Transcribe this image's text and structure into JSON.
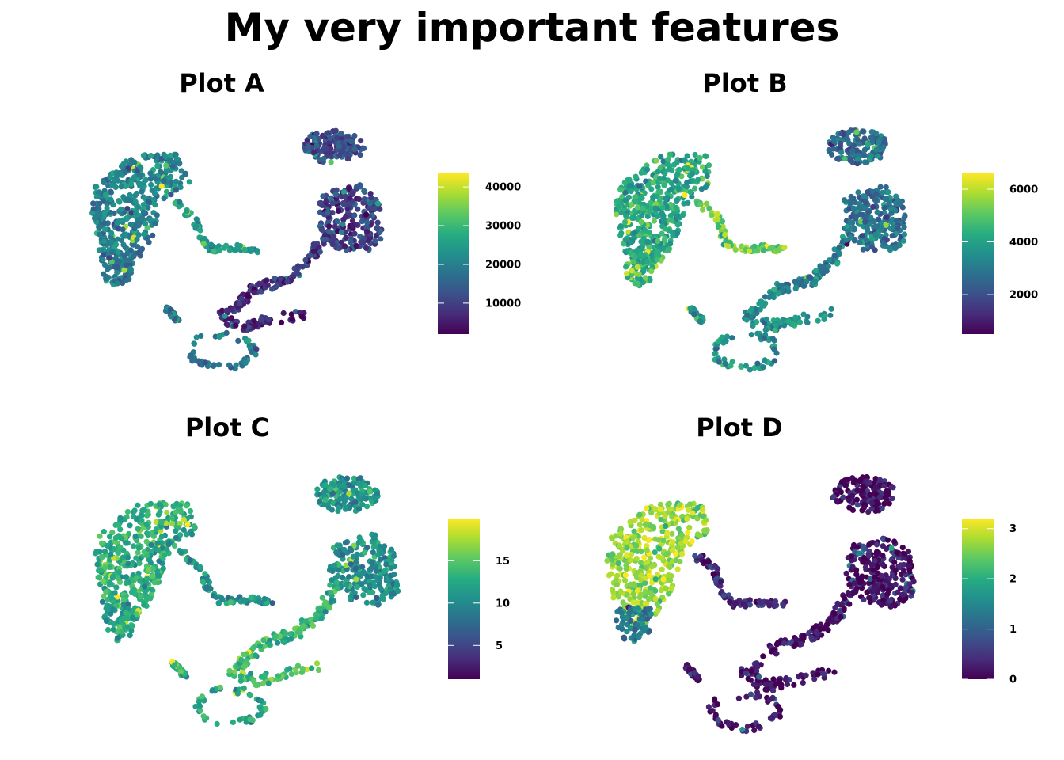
{
  "figure": {
    "title": "My very important features"
  },
  "chart_data": [
    {
      "type": "scatter",
      "title": "Plot A",
      "xlabel": "",
      "ylabel": "",
      "grid": false,
      "legend": "right",
      "colorscale": "viridis",
      "color_range": [
        2000,
        43500
      ],
      "colorbar_ticks": [
        10000,
        20000,
        30000,
        40000
      ],
      "colorbar_tick_labels": [
        "10000",
        "20000",
        "30000",
        "40000"
      ],
      "cluster_levels": {
        "left_large": 0.45,
        "left_stem": 0.4,
        "tail_right": 0.55,
        "bottom_ring": 0.4,
        "right_top": 0.22,
        "right_mid": 0.2,
        "right_stem": 0.15,
        "right_low": 0.12
      }
    },
    {
      "type": "scatter",
      "title": "Plot B",
      "xlabel": "",
      "ylabel": "",
      "grid": false,
      "legend": "right",
      "colorscale": "viridis",
      "color_range": [
        500,
        6600
      ],
      "colorbar_ticks": [
        2000,
        4000,
        6000
      ],
      "colorbar_tick_labels": [
        "2000",
        "4000",
        "6000"
      ],
      "cluster_levels": {
        "left_large": 0.6,
        "left_stem": 0.65,
        "tail_right": 0.75,
        "bottom_ring": 0.5,
        "right_top": 0.35,
        "right_mid": 0.38,
        "right_stem": 0.42,
        "right_low": 0.48
      }
    },
    {
      "type": "scatter",
      "title": "Plot C",
      "xlabel": "",
      "ylabel": "",
      "grid": false,
      "legend": "right",
      "colorscale": "viridis",
      "color_range": [
        1,
        20
      ],
      "colorbar_ticks": [
        5,
        10,
        15
      ],
      "colorbar_tick_labels": [
        "5",
        "10",
        "15"
      ],
      "cluster_levels": {
        "left_large": 0.62,
        "left_stem": 0.55,
        "tail_right": 0.5,
        "bottom_ring": 0.6,
        "right_top": 0.5,
        "right_mid": 0.5,
        "right_stem": 0.65,
        "right_low": 0.7
      }
    },
    {
      "type": "scatter",
      "title": "Plot D",
      "xlabel": "",
      "ylabel": "",
      "grid": false,
      "legend": "right",
      "colorscale": "viridis",
      "color_range": [
        0,
        3.2
      ],
      "colorbar_ticks": [
        0,
        1,
        2,
        3
      ],
      "colorbar_tick_labels": [
        "0",
        "1",
        "2",
        "3"
      ],
      "cluster_levels": {
        "left_large": 0.85,
        "left_stem": 0.4,
        "tail_right": 0.1,
        "bottom_ring": 0.05,
        "right_top": 0.03,
        "right_mid": 0.05,
        "right_stem": 0.05,
        "right_low": 0.04
      }
    }
  ]
}
